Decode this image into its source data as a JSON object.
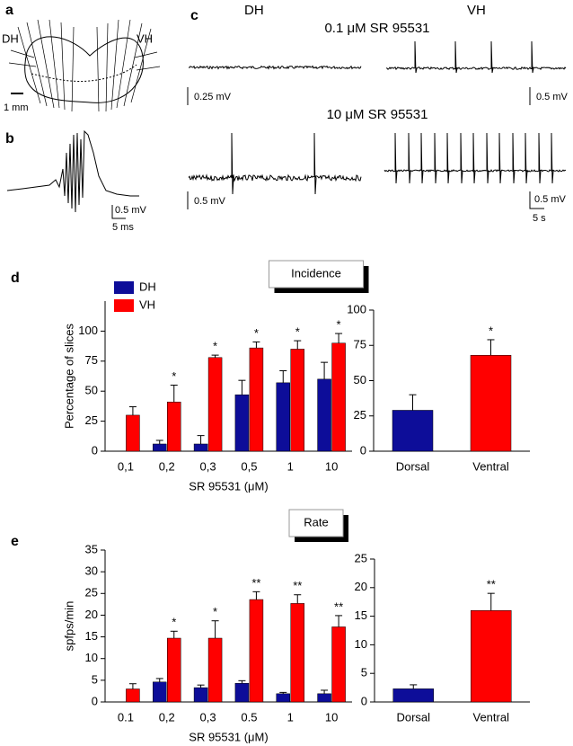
{
  "panels": {
    "a": {
      "label": "a",
      "left": "DH",
      "right": "VH",
      "scale": "1 mm"
    },
    "b": {
      "label": "b",
      "voltage": "0.5 mV",
      "time": "5 ms"
    },
    "c": {
      "label": "c",
      "left": "DH",
      "right": "VH",
      "condition1": "0.1 μM SR 95531",
      "condition2": "10 μM SR 95531",
      "scale1_left": "0.25 mV",
      "scale1_right": "0.5 mV",
      "scale2_left": "0.5 mV",
      "scale2_right": "0.5 mV",
      "time": "5 s"
    },
    "d": {
      "label": "d"
    },
    "e": {
      "label": "e"
    }
  },
  "chart_data": [
    {
      "type": "bar",
      "title": "Incidence",
      "x_label": "SR 95531 (μM)",
      "y_label": "Percentage of slices",
      "categories": [
        "0,1",
        "0,2",
        "0,3",
        "0,5",
        "1",
        "10"
      ],
      "series": [
        {
          "name": "DH",
          "color": "#0d0d99",
          "values": [
            0,
            6,
            6,
            47,
            57,
            60
          ],
          "errors": [
            null,
            3,
            7,
            12,
            10,
            14
          ],
          "significance": [
            null,
            null,
            null,
            null,
            null,
            null
          ]
        },
        {
          "name": "VH",
          "color": "#ff0000",
          "values": [
            30,
            41,
            78,
            86,
            85,
            90
          ],
          "errors": [
            7,
            14,
            2,
            5,
            7,
            8
          ],
          "significance": [
            null,
            "*",
            "*",
            "*",
            "*",
            "*"
          ]
        }
      ],
      "ylim": [
        0,
        125
      ],
      "yticks": [
        0,
        25,
        50,
        75,
        100
      ],
      "legend": "top-left"
    },
    {
      "type": "bar",
      "categories": [
        "Dorsal",
        "Ventral"
      ],
      "values": [
        29,
        68
      ],
      "errors": [
        11,
        11
      ],
      "significance": [
        null,
        "*"
      ],
      "colors": [
        "#0d0d99",
        "#ff0000"
      ],
      "ylim": [
        0,
        100
      ],
      "yticks": [
        0,
        25,
        50,
        75,
        100
      ]
    },
    {
      "type": "bar",
      "title": "Rate",
      "x_label": "SR 95531 (μM)",
      "y_label": "spfps/min",
      "categories": [
        "0.1",
        "0,2",
        "0,3",
        "0.5",
        "1",
        "10"
      ],
      "series": [
        {
          "color": "#0d0d99",
          "values": [
            0,
            4.6,
            3.3,
            4.3,
            1.9,
            1.9
          ],
          "errors": [
            null,
            0.8,
            0.6,
            0.6,
            0.3,
            0.8
          ],
          "significance": [
            null,
            null,
            null,
            null,
            null,
            null
          ]
        },
        {
          "color": "#ff0000",
          "values": [
            3,
            14.7,
            14.7,
            23.6,
            22.7,
            17.3
          ],
          "errors": [
            1.2,
            1.6,
            4,
            1.8,
            2,
            2.6
          ],
          "significance": [
            null,
            "*",
            "*",
            "**",
            "**",
            "**"
          ]
        }
      ],
      "ylim": [
        0,
        35
      ],
      "yticks": [
        0,
        5,
        10,
        15,
        20,
        25,
        30,
        35
      ]
    },
    {
      "type": "bar",
      "categories": [
        "Dorsal",
        "Ventral"
      ],
      "values": [
        2.3,
        16
      ],
      "errors": [
        0.7,
        3
      ],
      "significance": [
        null,
        "**"
      ],
      "colors": [
        "#0d0d99",
        "#ff0000"
      ],
      "ylim": [
        0,
        25
      ],
      "yticks": [
        0,
        5,
        10,
        15,
        20,
        25
      ]
    }
  ]
}
